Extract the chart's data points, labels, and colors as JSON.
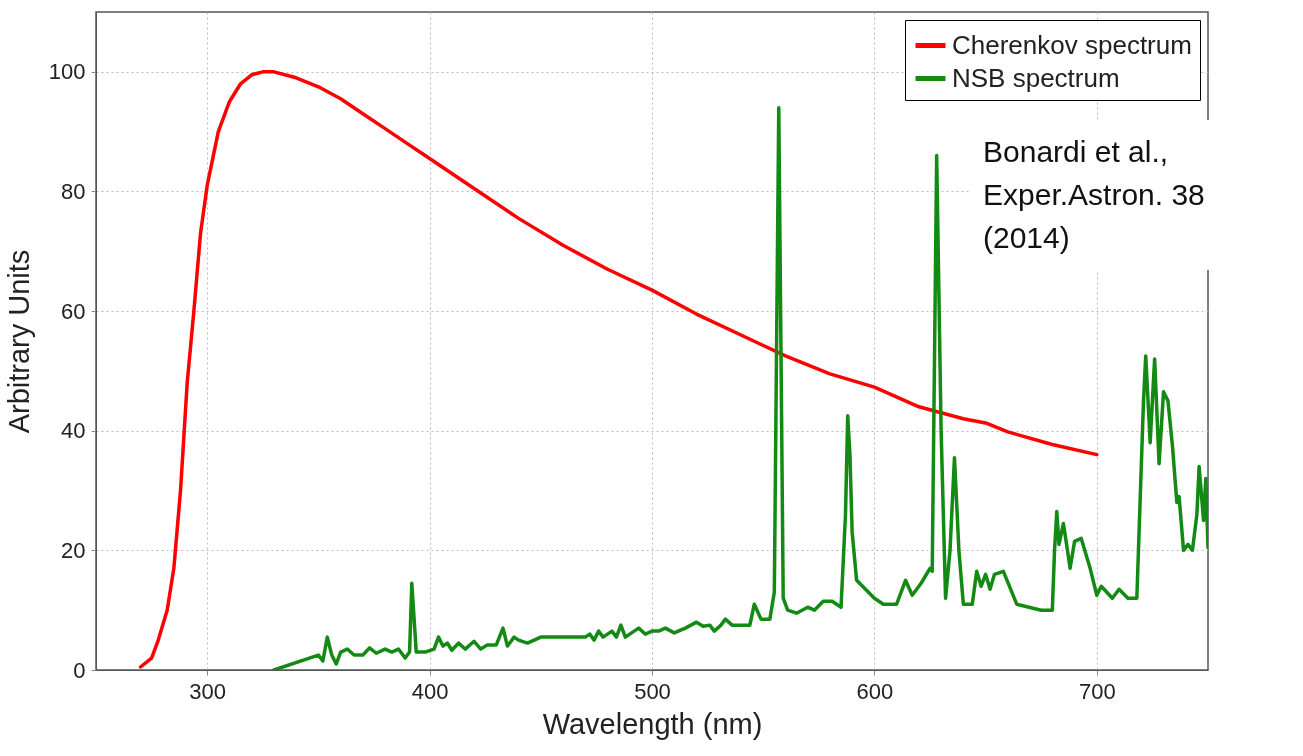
{
  "chart_data": {
    "type": "line",
    "xlabel": "Wavelength (nm)",
    "ylabel": "Arbitrary Units",
    "xlim": [
      250,
      750
    ],
    "xticks": [
      300,
      400,
      500,
      600,
      700
    ],
    "ylim": [
      0,
      110
    ],
    "yticks": [
      0,
      20,
      40,
      60,
      80,
      100
    ],
    "grid": true,
    "legend": "top right",
    "line_style": "solid",
    "annotations": [
      "Bonardi et al., Exper.Astron. 38 (2014)"
    ],
    "series": [
      {
        "name": "Cherenkov spectrum",
        "color": "#ff0000",
        "x": [
          270,
          275,
          278,
          282,
          285,
          288,
          291,
          294,
          297,
          300,
          305,
          310,
          315,
          320,
          325,
          330,
          340,
          350,
          360,
          370,
          380,
          390,
          400,
          420,
          440,
          460,
          480,
          500,
          520,
          540,
          560,
          580,
          600,
          620,
          640,
          650,
          660,
          680,
          700
        ],
        "values": [
          0.5,
          2,
          5,
          10,
          17,
          30,
          48,
          60,
          73,
          81,
          90,
          95,
          98,
          99.5,
          100,
          100,
          99,
          97.5,
          95.5,
          93,
          90.5,
          88,
          85.5,
          80.5,
          75.5,
          71,
          67,
          63.5,
          59.5,
          56,
          52.5,
          49.5,
          47.3,
          44,
          42,
          41.3,
          39.8,
          37.7,
          36
        ]
      },
      {
        "name": "NSB spectrum",
        "color": "#138a13",
        "x": [
          330,
          350,
          352,
          354,
          356,
          358,
          360,
          363,
          366,
          370,
          373,
          376,
          380,
          383,
          386,
          389,
          391,
          392,
          394,
          398,
          402,
          404,
          406,
          408,
          410,
          413,
          416,
          420,
          423,
          426,
          430,
          433,
          435,
          438,
          440,
          444,
          450,
          460,
          470,
          472,
          474,
          476,
          478,
          482,
          484,
          486,
          488,
          490,
          494,
          497,
          500,
          503,
          506,
          510,
          515,
          520,
          523,
          526,
          528,
          531,
          533,
          536,
          544,
          546,
          549,
          553,
          555,
          557,
          559,
          561,
          565,
          570,
          573,
          577,
          581,
          585,
          587,
          588,
          589,
          590,
          592,
          596,
          600,
          604,
          610,
          614,
          617,
          621,
          625,
          626,
          628,
          630,
          632,
          634,
          636,
          638,
          640,
          644,
          646,
          648,
          650,
          652,
          654,
          658,
          664,
          675,
          680,
          681,
          682,
          683,
          685,
          688,
          690,
          693,
          697,
          700,
          702,
          707,
          710,
          714,
          718,
          721,
          722,
          724,
          726,
          728,
          730,
          732,
          734,
          736,
          737,
          739,
          741,
          743,
          745,
          746,
          748,
          749,
          750
        ],
        "values": [
          0,
          2.5,
          1.5,
          5.5,
          2.5,
          1,
          3,
          3.5,
          2.5,
          2.5,
          3.7,
          2.8,
          3.5,
          3,
          3.5,
          2,
          3,
          14.5,
          3,
          3,
          3.5,
          5.5,
          4,
          4.5,
          3.3,
          4.5,
          3.5,
          4.8,
          3.5,
          4.2,
          4.2,
          7,
          4,
          5.5,
          5,
          4.5,
          5.5,
          5.5,
          5.5,
          6,
          5,
          6.5,
          5.5,
          6.5,
          5.5,
          7.5,
          5.5,
          6,
          7,
          6,
          6.5,
          6.5,
          7,
          6.2,
          7,
          8,
          7.3,
          7.5,
          6.5,
          7.5,
          8.5,
          7.5,
          7.5,
          11,
          8.5,
          8.5,
          13,
          94,
          12,
          10,
          9.5,
          10.5,
          10,
          11.5,
          11.5,
          10.5,
          26,
          42.5,
          36,
          23,
          15,
          13.5,
          12,
          11,
          11,
          15,
          12.5,
          14.5,
          17,
          16.5,
          86,
          40,
          12,
          20,
          35.5,
          20,
          11,
          11,
          16.5,
          14,
          16,
          13.5,
          16,
          16.5,
          11,
          10,
          10,
          20,
          26.5,
          21,
          24.5,
          17,
          21.5,
          22,
          17,
          12.5,
          14,
          12,
          13.5,
          12,
          12,
          45,
          52.5,
          38,
          52,
          34.5,
          46.5,
          45,
          37.5,
          28,
          29,
          20,
          21,
          20,
          26,
          34,
          25,
          32,
          20.5
        ]
      }
    ]
  }
}
